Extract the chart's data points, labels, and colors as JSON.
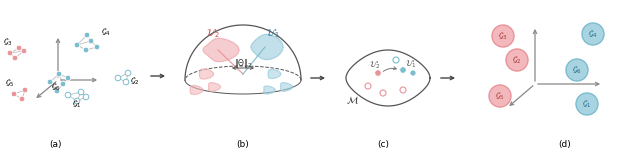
{
  "fig_width": 6.4,
  "fig_height": 1.52,
  "dpi": 100,
  "bg_color": "#ffffff",
  "pink": "#E8949A",
  "blue": "#7BBCCE",
  "pink_light": "#F2B8BC",
  "blue_light": "#A8D4E2",
  "gray": "#aaaaaa",
  "dark_gray": "#444444",
  "label_a": "(a)",
  "label_b": "(b)",
  "label_c": "(c)",
  "label_d": "(d)"
}
